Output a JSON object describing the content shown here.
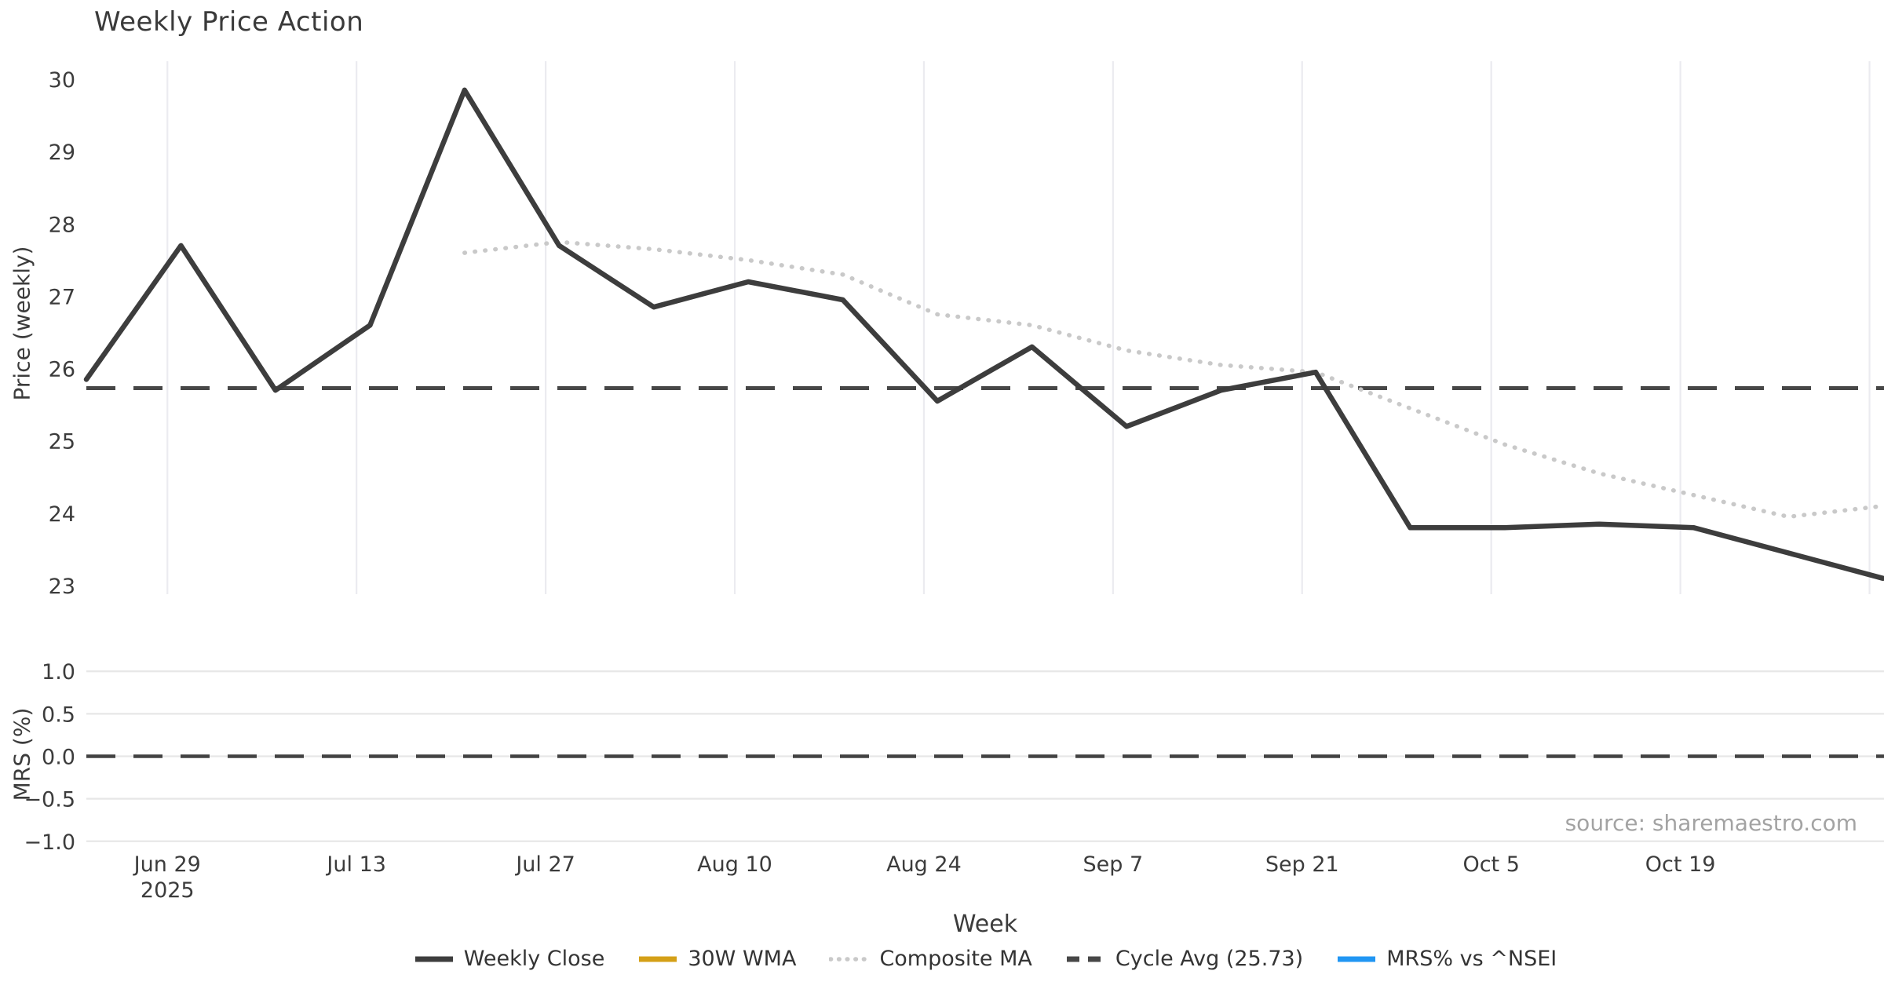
{
  "title": "Weekly Price Action",
  "source": "source: sharemaestro.com",
  "axes": {
    "x_title": "Week",
    "price_y_title": "Price (weekly)",
    "mrs_y_title": "MRS (%)",
    "price_tick_labels": [
      "30",
      "29",
      "28",
      "27",
      "26",
      "25",
      "24",
      "23"
    ],
    "price_tick_values": [
      30,
      29,
      28,
      27,
      26,
      25,
      24,
      23
    ],
    "mrs_tick_labels": [
      "1.0",
      "0.5",
      "0.0",
      "−0.5",
      "−1.0"
    ],
    "mrs_tick_values": [
      1.0,
      0.5,
      0.0,
      -0.5,
      -1.0
    ],
    "x_tick_labels": [
      {
        "label": "Jun 29",
        "sub": "2025"
      },
      {
        "label": "Jul 13",
        "sub": ""
      },
      {
        "label": "Jul 27",
        "sub": ""
      },
      {
        "label": "Aug 10",
        "sub": ""
      },
      {
        "label": "Aug 24",
        "sub": ""
      },
      {
        "label": "Sep 7",
        "sub": ""
      },
      {
        "label": "Sep 21",
        "sub": ""
      },
      {
        "label": "Oct 5",
        "sub": ""
      },
      {
        "label": "Oct 19",
        "sub": ""
      },
      {
        "label": "",
        "sub": ""
      }
    ]
  },
  "legend": {
    "items": [
      {
        "label": "Weekly Close",
        "color": "#3d3d3d",
        "style": "solid"
      },
      {
        "label": "30W WMA",
        "color": "#d4a017",
        "style": "solid"
      },
      {
        "label": "Composite MA",
        "color": "#c9c9c9",
        "style": "dotted"
      },
      {
        "label": "Cycle Avg (25.73)",
        "color": "#474747",
        "style": "dashed"
      },
      {
        "label": "MRS% vs ^NSEI",
        "color": "#2196f3",
        "style": "solid"
      }
    ]
  },
  "chart_data": {
    "type": "line",
    "title": "Weekly Price Action",
    "xlabel": "Week",
    "ylabel_top": "Price (weekly)",
    "ylabel_bottom": "MRS (%)",
    "x": [
      "2025-06-23",
      "2025-06-30",
      "2025-07-07",
      "2025-07-14",
      "2025-07-21",
      "2025-07-28",
      "2025-08-04",
      "2025-08-11",
      "2025-08-18",
      "2025-08-25",
      "2025-09-01",
      "2025-09-08",
      "2025-09-15",
      "2025-09-22",
      "2025-09-29",
      "2025-10-06",
      "2025-10-13",
      "2025-10-20",
      "2025-10-27",
      "2025-11-03"
    ],
    "series": [
      {
        "name": "Weekly Close",
        "panel": "price",
        "style": "solid",
        "color": "#3d3d3d",
        "values": [
          25.85,
          27.7,
          25.7,
          26.6,
          29.85,
          27.7,
          26.85,
          27.2,
          26.95,
          25.55,
          26.3,
          25.2,
          25.7,
          25.95,
          23.8,
          23.8,
          23.85,
          23.8,
          23.45,
          23.1
        ]
      },
      {
        "name": "30W WMA",
        "panel": "price",
        "style": "solid",
        "color": "#d4a017",
        "values": []
      },
      {
        "name": "Composite MA",
        "panel": "price",
        "style": "dotted",
        "color": "#c9c9c9",
        "values": [
          null,
          null,
          null,
          null,
          27.6,
          27.75,
          27.65,
          27.5,
          27.3,
          26.75,
          26.6,
          26.25,
          26.05,
          25.95,
          25.45,
          24.95,
          24.55,
          24.25,
          23.95,
          24.1
        ]
      },
      {
        "name": "Cycle Avg (25.73)",
        "panel": "price",
        "style": "dashed",
        "color": "#474747",
        "constant": 25.73
      },
      {
        "name": "MRS% vs ^NSEI",
        "panel": "mrs",
        "style": "solid",
        "color": "#2196f3",
        "values": []
      }
    ],
    "cycle_avg": 25.73,
    "price_axis": {
      "range": [
        22.87,
        30.25
      ],
      "grid": "vertical-only"
    },
    "mrs_axis": {
      "range": [
        -1.15,
        1.15
      ],
      "zero_line": 0.0,
      "grid": "horizontal-only"
    },
    "x_ticks_at": [
      "2025-06-29",
      "2025-07-13",
      "2025-07-27",
      "2025-08-10",
      "2025-08-24",
      "2025-09-07",
      "2025-09-21",
      "2025-10-05",
      "2025-10-19",
      "2025-11-02"
    ],
    "legend_position": "bottom-center"
  }
}
